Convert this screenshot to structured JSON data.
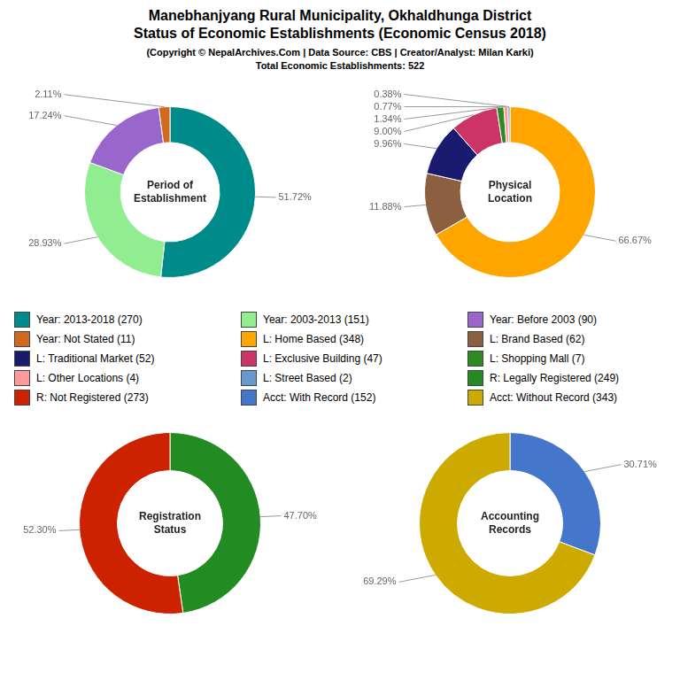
{
  "title": "Manebhanjyang Rural Municipality, Okhaldhunga District\nStatus of Economic Establishments (Economic Census 2018)",
  "subtitle": "(Copyright © NepalArchives.Com | Data Source: CBS | Creator/Analyst: Milan Karki)\nTotal Economic Establishments: 522",
  "chart_data": [
    {
      "type": "doughnut",
      "title": "Period of\nEstablishment",
      "categories": [
        "Year: 2013-2018 (270)",
        "Year: 2003-2013 (151)",
        "Year: Before 2003 (90)",
        "Year: Not Stated (11)"
      ],
      "values": [
        51.72,
        28.93,
        17.24,
        2.11
      ],
      "value_labels": [
        "51.72%",
        "28.93%",
        "17.24%",
        "2.11%"
      ],
      "colors": [
        "#008B8B",
        "#90EE90",
        "#9966CC",
        "#D2691E"
      ],
      "data_labels": true,
      "legend": "middle"
    },
    {
      "type": "doughnut",
      "title": "Physical\nLocation",
      "categories": [
        "L: Home Based (348)",
        "L: Brand Based (62)",
        "L: Traditional Market (52)",
        "L: Exclusive Building (47)",
        "L: Shopping Mall (7)",
        "L: Other Locations (4)",
        "L: Street Based (2)"
      ],
      "values": [
        66.67,
        11.88,
        9.96,
        9.0,
        1.34,
        0.77,
        0.38
      ],
      "value_labels": [
        "66.67%",
        "11.88%",
        "9.96%",
        "9.00%",
        "1.34%",
        "0.77%",
        "0.38%"
      ],
      "colors": [
        "#FFA500",
        "#8B6040",
        "#1a1a6e",
        "#cc3366",
        "#2E8B22",
        "#FF9999",
        "#6699CC"
      ],
      "data_labels": true,
      "legend": "middle"
    },
    {
      "type": "doughnut",
      "title": "Registration\nStatus",
      "categories": [
        "R: Legally Registered (249)",
        "R: Not Registered (273)"
      ],
      "values": [
        47.7,
        52.3
      ],
      "value_labels": [
        "47.70%",
        "52.30%"
      ],
      "colors": [
        "#228B22",
        "#CC2200"
      ],
      "data_labels": true,
      "legend": "middle"
    },
    {
      "type": "doughnut",
      "title": "Accounting\nRecords",
      "categories": [
        "Acct: With Record (152)",
        "Acct: Without Record (343)"
      ],
      "values": [
        30.71,
        69.29
      ],
      "value_labels": [
        "30.71%",
        "69.29%"
      ],
      "colors": [
        "#4477CC",
        "#CCAA00"
      ],
      "data_labels": true,
      "legend": "middle"
    }
  ]
}
